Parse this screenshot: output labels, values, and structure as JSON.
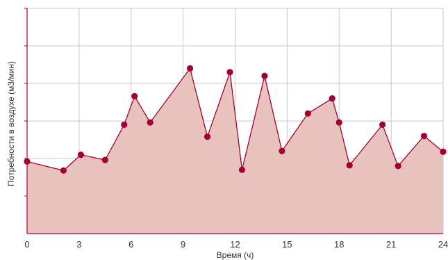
{
  "chart_data": {
    "type": "area",
    "title": "",
    "xlabel": "Время (ч)",
    "ylabel": "Потребности в воздухе (м3/мин)",
    "xlim": [
      0,
      24
    ],
    "ylim": [
      0,
      6
    ],
    "x_ticks": [
      0,
      3,
      6,
      9,
      12,
      15,
      18,
      21,
      24
    ],
    "x_tick_labels": [
      "0",
      "3",
      "6",
      "9",
      "12",
      "15",
      "18",
      "21",
      "24"
    ],
    "y_ticks": [
      0,
      1,
      2,
      3,
      4,
      5,
      6
    ],
    "grid": true,
    "legend": "none",
    "colors": {
      "line": "#a3002f",
      "marker": "#a3002f",
      "fill": "#e8c3be",
      "grid": "#c8c8c8",
      "axis": "#a3002f"
    },
    "series": [
      {
        "x": [
          0,
          2.1,
          3.1,
          4.5,
          5.6,
          6.2,
          7.1,
          9.4,
          10.4,
          11.7,
          12.4,
          13.7,
          14.7,
          16.2,
          17.6,
          18.0,
          18.6,
          20.5,
          21.4,
          22.9,
          24.0
        ],
        "y": [
          1.92,
          1.68,
          2.1,
          1.96,
          2.9,
          3.66,
          2.96,
          4.4,
          2.58,
          4.3,
          1.7,
          4.2,
          2.2,
          3.2,
          3.6,
          2.96,
          1.82,
          2.9,
          1.8,
          2.6,
          2.18
        ]
      }
    ]
  }
}
